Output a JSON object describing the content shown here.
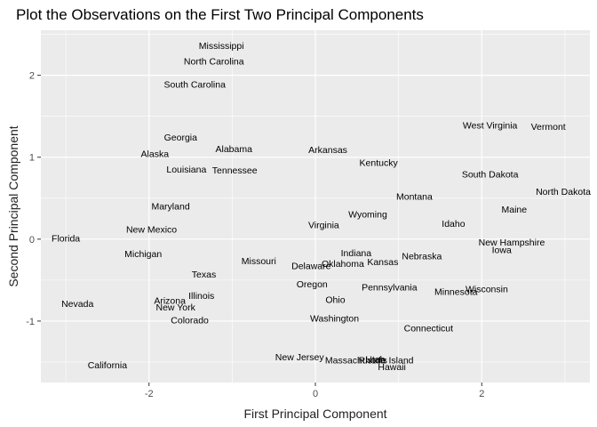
{
  "chart_data": {
    "type": "scatter",
    "title": "Plot the Observations on the First Two Principal Components",
    "xlabel": "First Principal Component",
    "ylabel": "Second Principal Component",
    "xlim": [
      -3.3,
      3.3
    ],
    "ylim": [
      -1.75,
      2.55
    ],
    "x_ticks": [
      -2,
      0,
      2
    ],
    "y_ticks": [
      -1,
      0,
      1,
      2
    ],
    "grid": true,
    "legend": "none",
    "colors": {
      "panel": "#ebebeb",
      "grid": "#ffffff",
      "text": "#000000"
    },
    "points": [
      {
        "label": "Mississippi",
        "x": -1.13,
        "y": 2.36
      },
      {
        "label": "North Carolina",
        "x": -1.22,
        "y": 2.17
      },
      {
        "label": "South Carolina",
        "x": -1.45,
        "y": 1.89
      },
      {
        "label": "West Virginia",
        "x": 2.1,
        "y": 1.39
      },
      {
        "label": "Vermont",
        "x": 2.8,
        "y": 1.37
      },
      {
        "label": "Georgia",
        "x": -1.62,
        "y": 1.24
      },
      {
        "label": "Alabama",
        "x": -0.98,
        "y": 1.1
      },
      {
        "label": "Arkansas",
        "x": 0.15,
        "y": 1.09
      },
      {
        "label": "Alaska",
        "x": -1.93,
        "y": 1.04
      },
      {
        "label": "Kentucky",
        "x": 0.76,
        "y": 0.93
      },
      {
        "label": "Louisiana",
        "x": -1.55,
        "y": 0.85
      },
      {
        "label": "Tennessee",
        "x": -0.97,
        "y": 0.84
      },
      {
        "label": "South Dakota",
        "x": 2.1,
        "y": 0.79
      },
      {
        "label": "North Dakota",
        "x": 2.98,
        "y": 0.58
      },
      {
        "label": "Montana",
        "x": 1.19,
        "y": 0.52
      },
      {
        "label": "Maryland",
        "x": -1.74,
        "y": 0.4
      },
      {
        "label": "Maine",
        "x": 2.39,
        "y": 0.36
      },
      {
        "label": "Wyoming",
        "x": 0.63,
        "y": 0.3
      },
      {
        "label": "Idaho",
        "x": 1.66,
        "y": 0.19
      },
      {
        "label": "Virginia",
        "x": 0.1,
        "y": 0.17
      },
      {
        "label": "New Mexico",
        "x": -1.97,
        "y": 0.12
      },
      {
        "label": "Florida",
        "x": -3.0,
        "y": 0.01
      },
      {
        "label": "New Hampshire",
        "x": 2.36,
        "y": -0.04
      },
      {
        "label": "Iowa",
        "x": 2.24,
        "y": -0.13
      },
      {
        "label": "Michigan",
        "x": -2.07,
        "y": -0.18
      },
      {
        "label": "Indiana",
        "x": 0.49,
        "y": -0.17
      },
      {
        "label": "Nebraska",
        "x": 1.28,
        "y": -0.21
      },
      {
        "label": "Missouri",
        "x": -0.68,
        "y": -0.27
      },
      {
        "label": "Kansas",
        "x": 0.81,
        "y": -0.28
      },
      {
        "label": "Oklahoma",
        "x": 0.33,
        "y": -0.3
      },
      {
        "label": "Delaware",
        "x": -0.05,
        "y": -0.33
      },
      {
        "label": "Texas",
        "x": -1.34,
        "y": -0.43
      },
      {
        "label": "Oregon",
        "x": -0.04,
        "y": -0.55
      },
      {
        "label": "Pennsylvania",
        "x": 0.89,
        "y": -0.59
      },
      {
        "label": "Wisconsin",
        "x": 2.06,
        "y": -0.61
      },
      {
        "label": "Minnesota",
        "x": 1.69,
        "y": -0.64
      },
      {
        "label": "Illinois",
        "x": -1.37,
        "y": -0.69
      },
      {
        "label": "Ohio",
        "x": 0.24,
        "y": -0.74
      },
      {
        "label": "Arizona",
        "x": -1.75,
        "y": -0.75
      },
      {
        "label": "Nevada",
        "x": -2.86,
        "y": -0.79
      },
      {
        "label": "New York",
        "x": -1.68,
        "y": -0.83
      },
      {
        "label": "Colorado",
        "x": -1.51,
        "y": -0.99
      },
      {
        "label": "Washington",
        "x": 0.23,
        "y": -0.97
      },
      {
        "label": "Connecticut",
        "x": 1.36,
        "y": -1.09
      },
      {
        "label": "New Jersey",
        "x": -0.19,
        "y": -1.44
      },
      {
        "label": "Massachusetts",
        "x": 0.49,
        "y": -1.48
      },
      {
        "label": "Rhode Island",
        "x": 0.85,
        "y": -1.48
      },
      {
        "label": "Utah",
        "x": 0.72,
        "y": -1.47
      },
      {
        "label": "California",
        "x": -2.5,
        "y": -1.54
      },
      {
        "label": "Hawaii",
        "x": 0.92,
        "y": -1.56
      }
    ]
  }
}
